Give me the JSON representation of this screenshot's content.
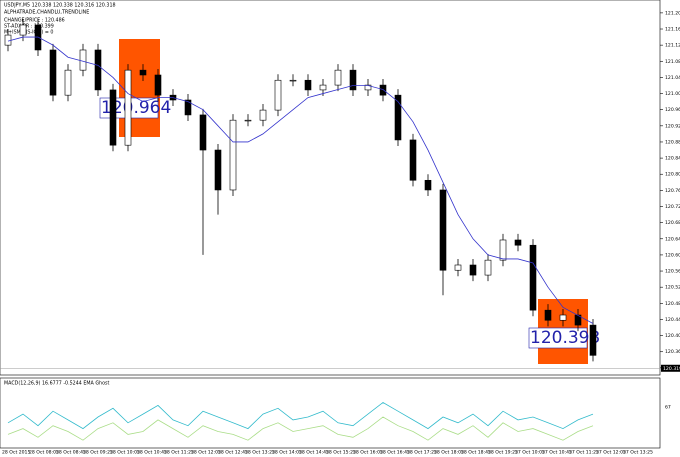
{
  "chart_data": {
    "type": "candlestick",
    "title": "USDJPY,M5 120.338 120.338 120.316 120.318",
    "subtitle": "ALPHATRADE,CHANDLU,TRENDLINE",
    "info_lines": [
      "CHANGE/PRICE : 120.486",
      "ST-ADX/PR : 120.399",
      "M+ISMA(JS-ICS.) = 0"
    ],
    "open": [
      121.12,
      121.145,
      121.17,
      121.108,
      120.996,
      121.058,
      121.108,
      121.009,
      120.872,
      121.058,
      121.046,
      120.996,
      120.984,
      120.947,
      120.86,
      120.761,
      120.934,
      120.934,
      120.959,
      121.033,
      121.033,
      121.009,
      121.021,
      121.058,
      121.009,
      121.021,
      120.996,
      120.885,
      120.785,
      120.761,
      120.562,
      120.575,
      120.55,
      120.587,
      120.637,
      120.624,
      120.463,
      120.438,
      120.451,
      120.426
    ],
    "high": [
      121.16,
      121.185,
      121.185,
      121.123,
      121.073,
      121.123,
      121.123,
      121.024,
      121.073,
      121.073,
      121.061,
      121.011,
      120.999,
      120.962,
      120.875,
      120.949,
      120.949,
      120.974,
      121.048,
      121.048,
      121.048,
      121.036,
      121.073,
      121.073,
      121.036,
      121.036,
      121.011,
      120.9,
      120.8,
      120.776,
      120.59,
      120.59,
      120.602,
      120.652,
      120.652,
      120.639,
      120.478,
      120.466,
      120.466,
      120.441
    ],
    "low": [
      121.105,
      121.13,
      121.093,
      120.981,
      120.981,
      121.043,
      120.994,
      120.857,
      120.857,
      121.031,
      120.981,
      120.969,
      120.932,
      120.6,
      120.7,
      120.746,
      120.919,
      120.919,
      120.944,
      121.018,
      120.994,
      120.994,
      121.006,
      120.994,
      120.994,
      120.981,
      120.87,
      120.77,
      120.746,
      120.5,
      120.547,
      120.535,
      120.535,
      120.572,
      120.609,
      120.448,
      120.423,
      120.423,
      120.411,
      120.336
    ],
    "close": [
      121.145,
      121.17,
      121.108,
      120.996,
      121.058,
      121.108,
      121.009,
      120.872,
      121.058,
      121.046,
      120.996,
      120.984,
      120.947,
      120.86,
      120.761,
      120.934,
      120.934,
      120.959,
      121.033,
      121.033,
      121.009,
      121.021,
      121.058,
      121.009,
      121.021,
      120.996,
      120.885,
      120.785,
      120.761,
      120.562,
      120.575,
      120.55,
      120.587,
      120.637,
      120.624,
      120.463,
      120.438,
      120.451,
      120.426,
      120.351
    ],
    "ma": {
      "color": "#3333cc",
      "values": [
        121.13,
        121.14,
        121.14,
        121.12,
        121.09,
        121.08,
        121.07,
        121.04,
        121.0,
        120.98,
        120.99,
        120.99,
        120.98,
        120.96,
        120.92,
        120.88,
        120.88,
        120.9,
        120.93,
        120.96,
        120.99,
        121.0,
        121.01,
        121.02,
        121.02,
        121.01,
        120.98,
        120.93,
        120.86,
        120.78,
        120.7,
        120.64,
        120.6,
        120.59,
        120.59,
        120.58,
        120.52,
        120.47,
        120.45,
        120.43
      ]
    },
    "annotations": [
      {
        "label": "120.964",
        "color": "#ff5500"
      },
      {
        "label": "120.393",
        "color": "#ff5500"
      }
    ],
    "current_price": {
      "value": 120.319,
      "label": "120.319"
    },
    "ylim": [
      120.28,
      121.222
    ],
    "yticks": [
      {
        "value": 121.2,
        "label": "121.200"
      },
      {
        "value": 121.16,
        "label": "121.160"
      },
      {
        "value": 121.12,
        "label": "121.120"
      },
      {
        "value": 121.08,
        "label": "121.080"
      },
      {
        "value": 121.04,
        "label": "121.040"
      },
      {
        "value": 121.0,
        "label": "121.000"
      },
      {
        "value": 120.96,
        "label": "120.960"
      },
      {
        "value": 120.92,
        "label": "120.920"
      },
      {
        "value": 120.88,
        "label": "120.880"
      },
      {
        "value": 120.84,
        "label": "120.840"
      },
      {
        "value": 120.8,
        "label": "120.800"
      },
      {
        "value": 120.76,
        "label": "120.760"
      },
      {
        "value": 120.72,
        "label": "120.720"
      },
      {
        "value": 120.68,
        "label": "120.680"
      },
      {
        "value": 120.64,
        "label": "120.640"
      },
      {
        "value": 120.6,
        "label": "120.600"
      },
      {
        "value": 120.56,
        "label": "120.560"
      },
      {
        "value": 120.52,
        "label": "120.520"
      },
      {
        "value": 120.48,
        "label": "120.480"
      },
      {
        "value": 120.44,
        "label": "120.440"
      },
      {
        "value": 120.4,
        "label": "120.400"
      },
      {
        "value": 120.36,
        "label": "120.360"
      },
      {
        "value": 120.32,
        "label": "120.320"
      }
    ],
    "x_labels": [
      "28 Oct 2015",
      "28 Oct 08:05",
      "28 Oct 08:45",
      "28 Oct 09:25",
      "28 Oct 10:05",
      "28 Oct 10:45",
      "28 Oct 11:25",
      "28 Oct 12:05",
      "28 Oct 12:45",
      "28 Oct 13:25",
      "28 Oct 14:05",
      "28 Oct 14:45",
      "28 Oct 15:25",
      "28 Oct 16:05",
      "28 Oct 16:45",
      "28 Oct 17:25",
      "28 Oct 18:05",
      "28 Oct 18:45",
      "28 Oct 19:25",
      "27 Oct 10:05",
      "27 Oct 10:45",
      "27 Oct 11:25",
      "27 Oct 12:05",
      "27 Oct 13:25"
    ],
    "indicator": {
      "title": "MACD(12,26,9) 16.6777 -0.5244 EMA Ghost",
      "ylim": [
        0,
        100
      ],
      "yticks": [
        67
      ],
      "series": [
        {
          "color": "#33bbcc",
          "values": [
            40,
            55,
            35,
            60,
            45,
            30,
            50,
            65,
            40,
            55,
            70,
            45,
            35,
            60,
            50,
            40,
            30,
            55,
            65,
            45,
            50,
            60,
            40,
            35,
            55,
            75,
            60,
            45,
            30,
            50,
            40,
            55,
            35,
            60,
            45,
            50,
            40,
            30,
            45,
            55
          ]
        },
        {
          "color": "#aadd88",
          "values": [
            20,
            30,
            15,
            35,
            25,
            10,
            30,
            40,
            20,
            25,
            45,
            30,
            15,
            35,
            25,
            20,
            10,
            30,
            40,
            25,
            30,
            35,
            20,
            15,
            30,
            50,
            35,
            25,
            10,
            30,
            20,
            35,
            15,
            40,
            25,
            30,
            20,
            10,
            25,
            35
          ]
        }
      ]
    }
  }
}
